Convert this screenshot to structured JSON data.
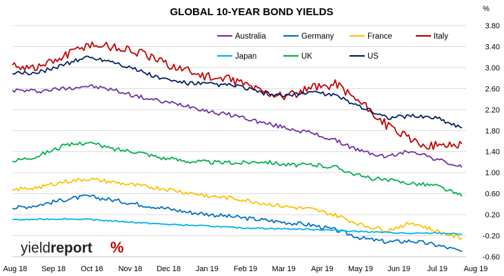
{
  "chart_data": {
    "type": "line",
    "title": "GLOBAL 10-YEAR BOND YIELDS",
    "ylabel": "%",
    "ylim": [
      -0.6,
      3.8
    ],
    "yticks": [
      "3.80",
      "3.40",
      "3.00",
      "2.60",
      "2.20",
      "1.80",
      "1.40",
      "1.00",
      "0.60",
      "0.20",
      "-0.20",
      "-0.60"
    ],
    "xticks": [
      "Aug 18",
      "Sep 18",
      "Oct 18",
      "Nov 18",
      "Dec 18",
      "Jan 19",
      "Feb 19",
      "Mar 19",
      "Apr 19",
      "May 19",
      "Jun 19",
      "Jul 19",
      "Aug 19"
    ],
    "grid": "horizontal",
    "legend": "top-right",
    "series": [
      {
        "name": "Australia",
        "color": "#7030a0",
        "values": [
          2.57,
          2.55,
          2.6,
          2.65,
          2.58,
          2.45,
          2.35,
          2.28,
          2.15,
          2.08,
          1.95,
          1.85,
          1.75,
          1.6,
          1.4,
          1.3,
          1.42,
          1.25,
          1.1
        ]
      },
      {
        "name": "Germany",
        "color": "#0070c0",
        "values": [
          0.32,
          0.38,
          0.48,
          0.55,
          0.48,
          0.4,
          0.33,
          0.25,
          0.2,
          0.15,
          0.1,
          0.05,
          0.0,
          -0.1,
          -0.25,
          -0.32,
          -0.3,
          -0.38,
          -0.5
        ]
      },
      {
        "name": "France",
        "color": "#ffc000",
        "values": [
          0.67,
          0.72,
          0.82,
          0.88,
          0.82,
          0.75,
          0.7,
          0.62,
          0.55,
          0.5,
          0.42,
          0.35,
          0.3,
          0.18,
          0.0,
          -0.1,
          0.05,
          -0.12,
          -0.25
        ]
      },
      {
        "name": "Italy",
        "color": "#c00000",
        "values": [
          3.05,
          3.0,
          3.2,
          3.45,
          3.4,
          3.3,
          3.1,
          2.95,
          2.8,
          2.75,
          2.55,
          2.45,
          2.6,
          2.7,
          2.3,
          1.9,
          1.6,
          1.5,
          1.55
        ]
      },
      {
        "name": "Japan",
        "color": "#00b0f0",
        "values": [
          0.1,
          0.11,
          0.12,
          0.11,
          0.08,
          0.05,
          0.02,
          0.0,
          -0.02,
          -0.05,
          -0.06,
          -0.07,
          -0.08,
          -0.1,
          -0.12,
          -0.14,
          -0.16,
          -0.15,
          -0.17
        ]
      },
      {
        "name": "UK",
        "color": "#00b050",
        "values": [
          1.22,
          1.32,
          1.5,
          1.58,
          1.45,
          1.4,
          1.28,
          1.22,
          1.2,
          1.18,
          1.22,
          1.15,
          1.15,
          1.1,
          0.92,
          0.85,
          0.8,
          0.75,
          0.55
        ]
      },
      {
        "name": "US",
        "color": "#002060",
        "values": [
          2.88,
          2.9,
          3.05,
          3.2,
          3.12,
          2.95,
          2.78,
          2.7,
          2.68,
          2.65,
          2.52,
          2.45,
          2.55,
          2.45,
          2.25,
          2.05,
          2.08,
          2.05,
          1.85
        ]
      }
    ]
  },
  "watermark": {
    "brand": "yield",
    "brand_bold": "report",
    "brand_mark": "%"
  }
}
